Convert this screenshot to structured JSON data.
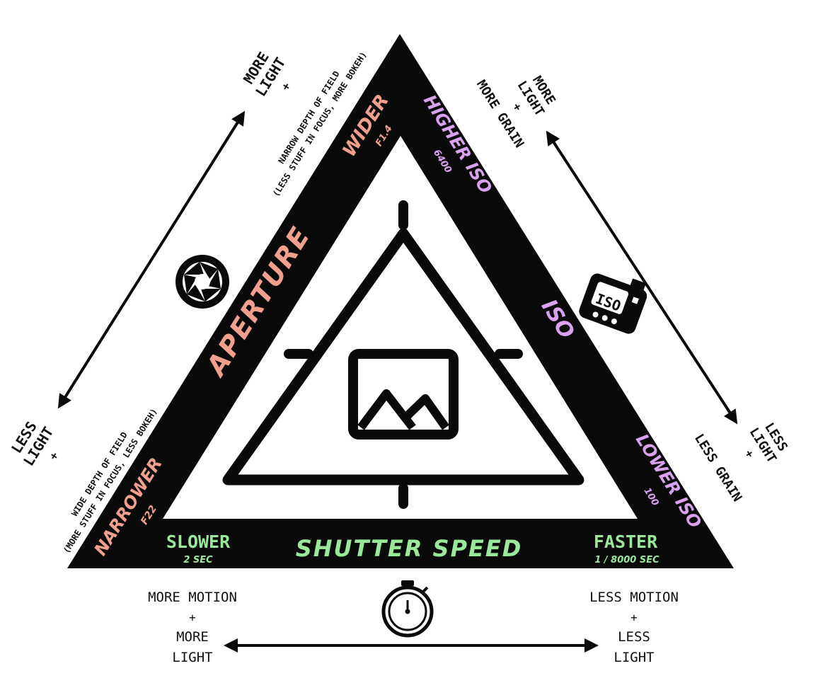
{
  "colors": {
    "aperture": "#f0a08c",
    "iso": "#d9a2ee",
    "shutter": "#9ae89a",
    "ink": "#0a0a0a",
    "bg": "#ffffff"
  },
  "icons": {
    "aperture": "aperture-icon",
    "iso_camera": "camera-iso-icon",
    "stopwatch": "stopwatch-icon",
    "image": "image-icon"
  },
  "aperture": {
    "title": "APERTURE",
    "wide": {
      "label": "WIDER",
      "value": "F1.4"
    },
    "narrow": {
      "label": "NARROWER",
      "value": "F22"
    },
    "top_note": {
      "line1": "MORE",
      "line2": "LIGHT",
      "plus": "+",
      "line3": "NARROW DEPTH OF FIELD",
      "line4": "(LESS STUFF IN FOCUS, MORE BOKEH)"
    },
    "bottom_note": {
      "line1": "LESS",
      "line2": "LIGHT",
      "plus": "+",
      "line3": "WIDE DEPTH OF FIELD",
      "line4": "(MORE STUFF IN FOCUS, LESS BOKEH)"
    }
  },
  "iso": {
    "title": "ISO",
    "icon_text": "ISO",
    "high": {
      "label": "HIGHER ISO",
      "value": "6400"
    },
    "low": {
      "label": "LOWER ISO",
      "value": "100"
    },
    "top_note": {
      "line1": "MORE",
      "line2": "LIGHT",
      "plus": "+",
      "line3": "MORE GRAIN"
    },
    "bottom_note": {
      "line1": "LESS",
      "line2": "LIGHT",
      "plus": "+",
      "line3": "LESS GRAIN"
    }
  },
  "shutter": {
    "title": "SHUTTER SPEED",
    "slow": {
      "label": "SLOWER",
      "value": "2 SEC"
    },
    "fast": {
      "label": "FASTER",
      "value": "1 / 8000 SEC"
    },
    "left_note": {
      "line1": "MORE MOTION",
      "plus": "+",
      "line2": "MORE",
      "line3": "LIGHT"
    },
    "right_note": {
      "line1": "LESS MOTION",
      "plus": "+",
      "line2": "LESS",
      "line3": "LIGHT"
    }
  }
}
